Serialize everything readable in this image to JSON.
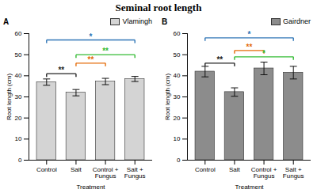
{
  "chart_data": {
    "type": "bar",
    "title": "Seminal root length",
    "panels": [
      {
        "label": "A",
        "categories": [
          "Control",
          "Salt",
          "Control + Fungus",
          "Salt + Fungus"
        ],
        "series": [
          {
            "name": "Vlamingh",
            "color": "#d4d4d4",
            "values": [
              37,
              32,
              37.3,
              38.5
            ],
            "errors": [
              1.5,
              1.5,
              1.5,
              1.2
            ]
          }
        ],
        "xlabel": "Treatment",
        "ylabel": "Root length (cm)",
        "ylim": [
          0,
          60
        ],
        "yticks": [
          0,
          10,
          20,
          30,
          40,
          50,
          60
        ],
        "legend": "top-right",
        "annotations": [
          {
            "from": "Control",
            "to": "Salt + Fungus",
            "y": 57,
            "text": "*",
            "color": "#2e75b6"
          },
          {
            "from": "Salt",
            "to": "Salt + Fungus",
            "y": 50,
            "text": "**",
            "color": "#33bb33"
          },
          {
            "from": "Salt",
            "to": "Control + Fungus",
            "y": 46,
            "text": "**",
            "color": "#e46c0a"
          },
          {
            "from": "Control",
            "to": "Salt",
            "y": 41,
            "text": "**",
            "color": "#222222"
          }
        ]
      },
      {
        "label": "B",
        "categories": [
          "Control",
          "Salt",
          "Control + Fungus",
          "Salt + Fungus"
        ],
        "series": [
          {
            "name": "Gairdner",
            "color": "#8c8c8c",
            "values": [
              42,
              32.3,
              43.5,
              41.5
            ],
            "errors": [
              2.5,
              2,
              3,
              3
            ]
          }
        ],
        "xlabel": "Treatment",
        "ylabel": "Root length (cm)",
        "ylim": [
          0,
          60
        ],
        "yticks": [
          0,
          10,
          20,
          30,
          40,
          50,
          60
        ],
        "legend": "top-right",
        "annotations": [
          {
            "from": "Control",
            "to": "Salt + Fungus",
            "y": 58,
            "text": "*",
            "color": "#2e75b6"
          },
          {
            "from": "Salt",
            "to": "Control + Fungus",
            "y": 52,
            "text": "**",
            "color": "#e46c0a"
          },
          {
            "from": "Salt",
            "to": "Salt + Fungus",
            "y": 49,
            "text": "*",
            "color": "#33bb33"
          },
          {
            "from": "Control",
            "to": "Salt",
            "y": 46,
            "text": "**",
            "color": "#222222"
          }
        ]
      }
    ]
  }
}
